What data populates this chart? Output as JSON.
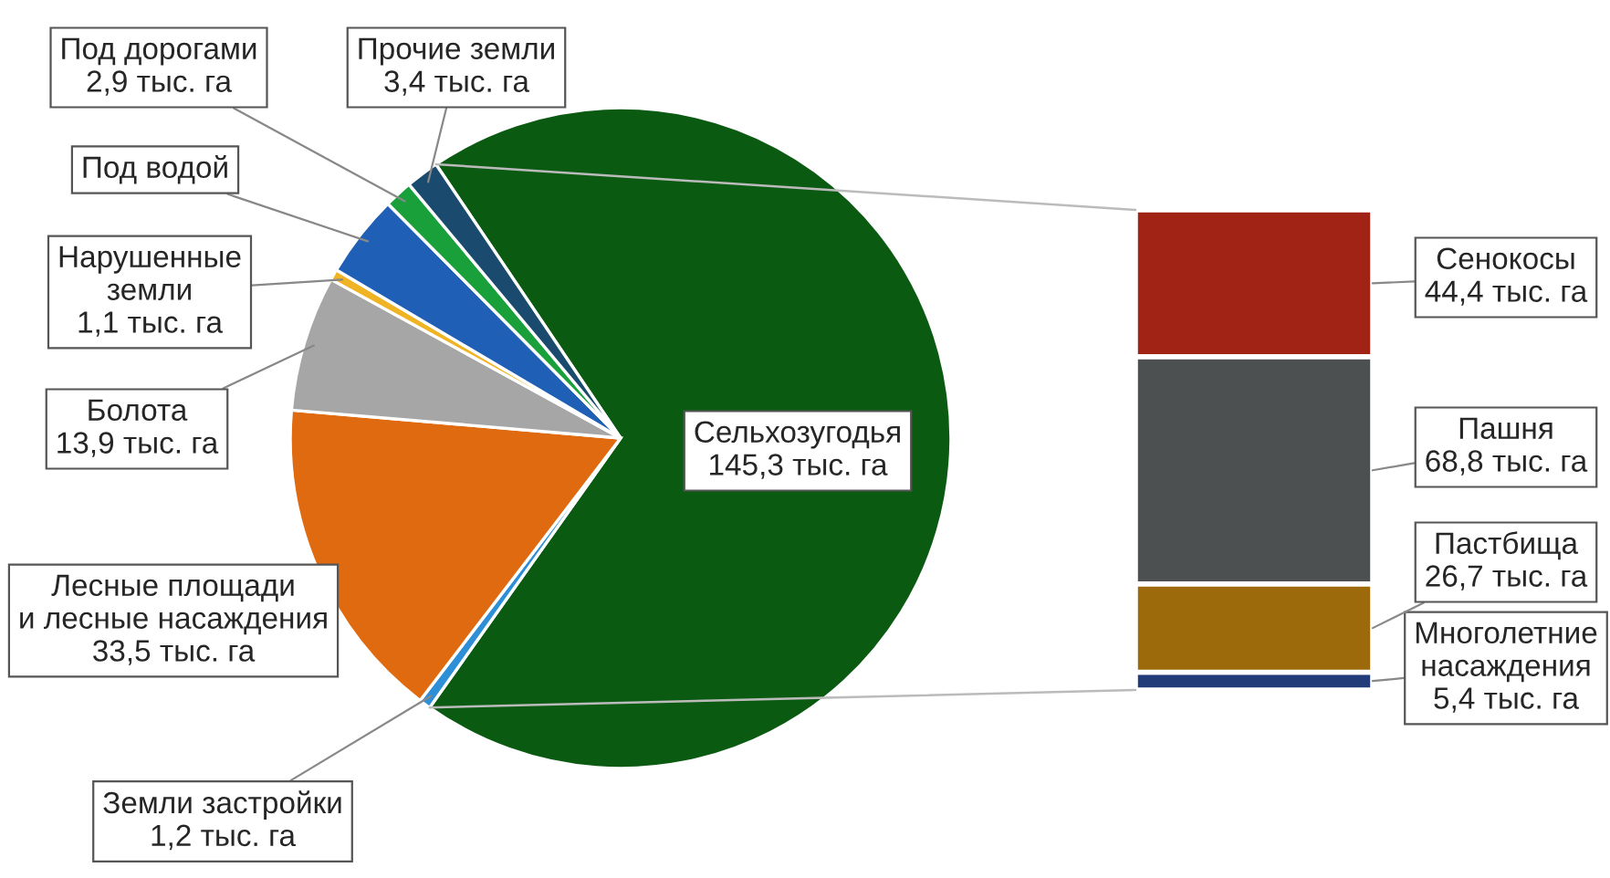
{
  "chart_data": [
    {
      "type": "pie",
      "categories": [
        "Сельхозугодья",
        "Земли застройки",
        "Лесные площади\nи лесные насаждения",
        "Болота",
        "Нарушенные\nземли",
        "Под водой",
        "Под дорогами",
        "Прочие земли"
      ],
      "values": [
        145.3,
        1.2,
        33.5,
        13.9,
        1.1,
        8.5,
        2.9,
        3.4
      ],
      "colors": [
        "#0b5a12",
        "#2e8fd6",
        "#e06a10",
        "#a6a6a6",
        "#f0b323",
        "#1f5fb5",
        "#19a03a",
        "#1a4a6e"
      ],
      "value_labels": [
        "145,3 тыс. га",
        "1,2 тыс. га",
        "33,5 тыс. га",
        "13,9 тыс. га",
        "1,1 тыс. га",
        null,
        "2,9 тыс. га",
        "3,4 тыс. га"
      ]
    },
    {
      "type": "bar",
      "stacked": true,
      "categories": [
        null
      ],
      "series": [
        {
          "name": "Многолетние\nнасаждения",
          "color": "#213c78",
          "values": [
            5.4
          ],
          "value_labels": [
            "5,4 тыс. га"
          ]
        },
        {
          "name": "Пастбища",
          "color": "#9c6a0a",
          "values": [
            26.7
          ],
          "value_labels": [
            "26,7 тыс. га"
          ]
        },
        {
          "name": "Пашня",
          "color": "#4d5050",
          "values": [
            68.8
          ],
          "value_labels": [
            "68,8 тыс. га"
          ]
        },
        {
          "name": "Сенокосы",
          "color": "#a02316",
          "values": [
            44.4
          ],
          "value_labels": [
            "44,4 тыс. га"
          ]
        }
      ]
    }
  ]
}
